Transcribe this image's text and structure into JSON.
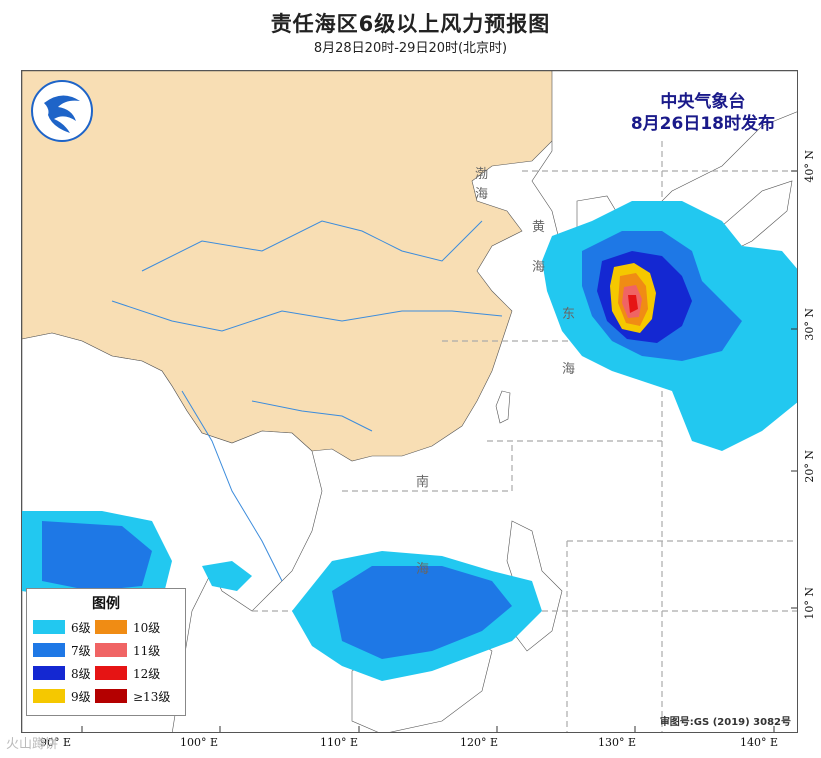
{
  "title": "责任海区6级以上风力预报图",
  "subtitle": "8月28日20时-29日20时(北京时)",
  "agency": {
    "name": "中央气象台",
    "issued": "8月26日18时发布"
  },
  "legend": {
    "title": "图例",
    "items": [
      {
        "label": "6级",
        "color": "#22c8f0"
      },
      {
        "label": "7级",
        "color": "#1e78e6"
      },
      {
        "label": "8级",
        "color": "#1428d2"
      },
      {
        "label": "9级",
        "color": "#f5c800"
      },
      {
        "label": "10级",
        "color": "#f08c14"
      },
      {
        "label": "11级",
        "color": "#f06464"
      },
      {
        "label": "12级",
        "color": "#e61414"
      },
      {
        "label": "≥13级",
        "color": "#b40000"
      }
    ]
  },
  "approval_no": "审图号:GS (2019) 3082号",
  "watermark": "火山蹲饼",
  "axes": {
    "longitudes": [
      "90° E",
      "100° E",
      "110° E",
      "120° E",
      "130° E",
      "140° E"
    ],
    "latitudes": [
      "40° N",
      "30° N",
      "20° N",
      "10° N"
    ]
  },
  "sea_labels": [
    "渤",
    "海",
    "黄",
    "海",
    "东",
    "海",
    "南",
    "海"
  ],
  "colors": {
    "land": "#f8deb4",
    "sea": "#ffffff",
    "river": "#3c8cdc"
  }
}
